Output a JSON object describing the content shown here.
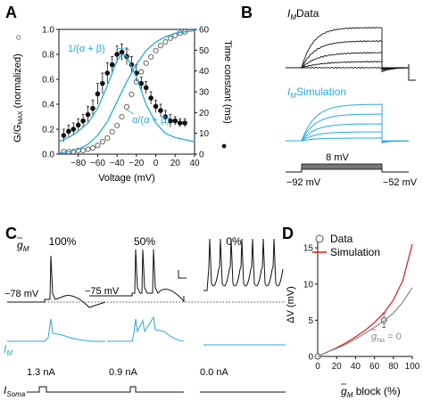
{
  "colors": {
    "black": "#111111",
    "blue": "#29a9e0",
    "red": "#d7191c",
    "gray": "#888888"
  },
  "panels": {
    "A": {
      "label": "A",
      "ylabel_left": "G/G",
      "ylabel_left_sub": "MAX",
      "ylabel_left_tail": " (normalized)",
      "left_marker": "○",
      "ylabel_right": "Time constant (ms)",
      "right_marker": "●",
      "xlabel": "Voltage (mV)",
      "curve_label_1": "1/(α + β)",
      "curve_label_2": "α/(α + β)",
      "x_ticks": [
        "−80",
        "−60",
        "−40",
        "−20",
        "0",
        "20",
        "40"
      ],
      "y_left_ticks": [
        "0.0",
        "0.2",
        "0.4",
        "0.6",
        "0.8",
        "1.0"
      ],
      "y_right_ticks": [
        "0",
        "10",
        "20",
        "30",
        "40",
        "50",
        "60"
      ]
    },
    "B": {
      "label": "B",
      "data_label": "Data",
      "sim_label": "Simulation",
      "I_letter": "I",
      "I_sub": "M",
      "step_label": "8 mV",
      "v_hold": "−92 mV",
      "v_end": "−52 mV"
    },
    "C": {
      "label": "C",
      "gbar_letter": "g",
      "gbar_sub": "M",
      "cols": [
        {
          "pct": "100%",
          "vrest": "−78 mV",
          "inj": "1.3 nA"
        },
        {
          "pct": "50%",
          "vrest": "−75 mV",
          "inj": "0.9 nA"
        },
        {
          "pct": "0%",
          "vrest": "",
          "inj": "0.0 nA"
        }
      ],
      "im_letter": "I",
      "im_sub": "M",
      "isoma_letter": "I",
      "isoma_sub": "Soma"
    },
    "D": {
      "label": "D",
      "legend_data": "Data",
      "legend_sim": "Simulation",
      "ylabel": "ΔV (mV)",
      "xlabel_tail": " block (%)",
      "xlabel_letter": "g",
      "xlabel_sub": "M",
      "gna_letter": "g",
      "gna_sub": "Na",
      "gna_tail": " = 0",
      "x_ticks": [
        "0",
        "20",
        "40",
        "60",
        "80",
        "100"
      ],
      "y_ticks": [
        "0",
        "5",
        "10",
        "15"
      ]
    }
  },
  "chart_data": [
    {
      "panel": "A",
      "type": "scatter",
      "xlabel": "Voltage (mV)",
      "xlim": [
        -100,
        40
      ],
      "ylim_left": [
        0,
        1.0
      ],
      "ylim_right": [
        0,
        60
      ],
      "series": [
        {
          "marker": "open-circle",
          "axis": "left",
          "x": [
            -95,
            -90,
            -85,
            -80,
            -75,
            -70,
            -65,
            -60,
            -55,
            -50,
            -45,
            -40,
            -35,
            -30,
            -25,
            -20,
            -15,
            -10,
            -5,
            0,
            5,
            10,
            15,
            20,
            25,
            30
          ],
          "y": [
            0.02,
            0.02,
            0.02,
            0.03,
            0.03,
            0.04,
            0.05,
            0.07,
            0.1,
            0.13,
            0.18,
            0.23,
            0.3,
            0.38,
            0.48,
            0.58,
            0.66,
            0.73,
            0.78,
            0.83,
            0.87,
            0.9,
            0.93,
            0.95,
            0.97,
            0.98
          ]
        },
        {
          "marker": "filled-circle",
          "axis": "right",
          "x": [
            -95,
            -90,
            -85,
            -80,
            -75,
            -70,
            -65,
            -60,
            -55,
            -50,
            -45,
            -40,
            -35,
            -30,
            -25,
            -20,
            -15,
            -10,
            -5,
            0,
            5,
            10,
            15,
            20,
            25,
            30
          ],
          "y": [
            9,
            11,
            12,
            14,
            16,
            19,
            22,
            29,
            34,
            39,
            43,
            48,
            49,
            47,
            43,
            39,
            34,
            32,
            27,
            23,
            21,
            18,
            16,
            16,
            15,
            15
          ],
          "err": [
            3,
            3,
            3,
            3,
            3,
            4,
            4,
            5,
            5,
            5,
            4,
            4,
            4,
            4,
            4,
            4,
            3,
            3,
            3,
            3,
            3,
            3,
            3,
            2,
            2,
            2
          ]
        },
        {
          "marker": "line",
          "axis": "right",
          "color": "blue",
          "label": "1/(α + β)",
          "x": [
            -100,
            -90,
            -80,
            -70,
            -60,
            -50,
            -40,
            -35,
            -30,
            -20,
            -10,
            0,
            10,
            20,
            30,
            40
          ],
          "y": [
            6,
            8,
            11,
            15,
            22,
            33,
            45,
            48,
            47,
            37,
            24,
            15,
            10,
            8,
            7,
            6
          ]
        },
        {
          "marker": "line",
          "axis": "left",
          "color": "blue",
          "label": "α/(α + β)",
          "x": [
            -100,
            -90,
            -80,
            -70,
            -60,
            -50,
            -40,
            -30,
            -20,
            -10,
            0,
            10,
            20,
            30,
            40
          ],
          "y": [
            0.01,
            0.02,
            0.04,
            0.08,
            0.15,
            0.26,
            0.42,
            0.58,
            0.72,
            0.83,
            0.9,
            0.94,
            0.97,
            0.98,
            0.99
          ]
        }
      ]
    },
    {
      "panel": "D",
      "type": "line",
      "xlabel": "gM block (%)",
      "ylabel": "ΔV (mV)",
      "xlim": [
        0,
        100
      ],
      "ylim": [
        0,
        16
      ],
      "series": [
        {
          "name": "Data",
          "marker": "open-circle",
          "x": [
            0,
            70
          ],
          "y": [
            0,
            5
          ],
          "err": [
            0,
            1
          ]
        },
        {
          "name": "Simulation",
          "color": "red",
          "x": [
            0,
            10,
            20,
            30,
            40,
            50,
            60,
            70,
            80,
            90,
            100
          ],
          "y": [
            0,
            0.6,
            1.2,
            1.9,
            2.7,
            3.6,
            4.7,
            6.0,
            7.8,
            10.5,
            15.5
          ]
        },
        {
          "name": "gNa = 0",
          "color": "gray",
          "x": [
            0,
            10,
            20,
            30,
            40,
            50,
            60,
            70,
            80,
            90,
            100
          ],
          "y": [
            0,
            0.6,
            1.1,
            1.7,
            2.4,
            3.2,
            4.0,
            4.9,
            6.0,
            7.5,
            9.5
          ]
        }
      ]
    }
  ]
}
